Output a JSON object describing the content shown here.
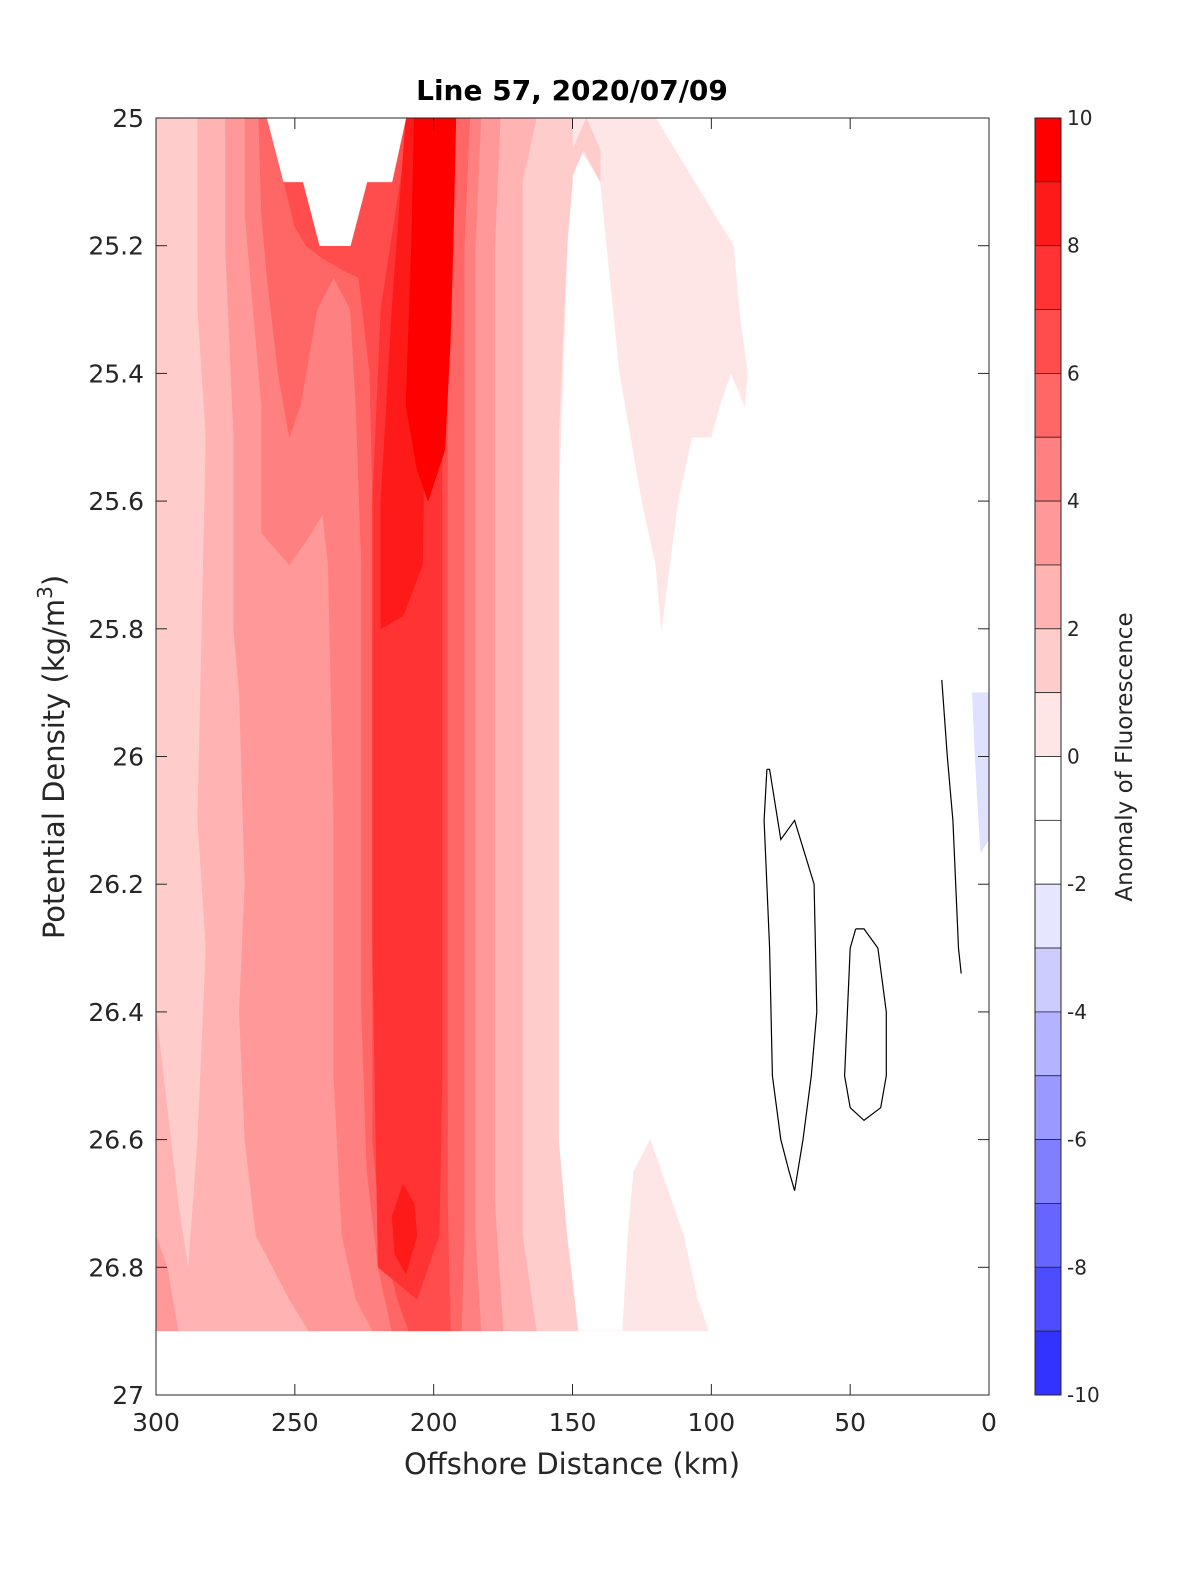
{
  "chart_data": {
    "type": "contourf",
    "title": "Line 57, 2020/07/09",
    "xlabel": "Offshore Distance (km)",
    "ylabel_main": "Potential Density (kg/m",
    "ylabel_sup": "3",
    "ylabel_end": ")",
    "xlim": [
      300,
      0
    ],
    "ylim": [
      25,
      27
    ],
    "y_reversed": true,
    "x_reversed": true,
    "x_ticks": [
      300,
      250,
      200,
      150,
      100,
      50,
      0
    ],
    "y_ticks": [
      25,
      25.2,
      25.4,
      25.6,
      25.8,
      26,
      26.2,
      26.4,
      26.6,
      26.8,
      27
    ],
    "grid": false,
    "data_extent": {
      "x": [
        300,
        0
      ],
      "y": [
        25,
        26.9
      ]
    },
    "contour_levels": [
      -10,
      -9,
      -8,
      -7,
      -6,
      -5,
      -4,
      -3,
      -2,
      -1,
      0,
      1,
      2,
      3,
      4,
      5,
      6,
      7,
      8,
      9,
      10
    ],
    "colorbar": {
      "label": "Anomaly of Fluorescence",
      "range": [
        -10,
        10
      ],
      "ticks": [
        10,
        8,
        6,
        4,
        2,
        0,
        -2,
        -4,
        -6,
        -8,
        -10
      ],
      "colors": [
        "#ff0000",
        "#ff1a1a",
        "#ff3333",
        "#ff4d4d",
        "#ff6666",
        "#ff8080",
        "#ff9999",
        "#ffb3b3",
        "#ffcccc",
        "#ffe6e6",
        "#ffffff",
        "#ffffff",
        "#e6e6ff",
        "#ccccff",
        "#b3b3ff",
        "#9999ff",
        "#8080ff",
        "#6666ff",
        "#4d4dff",
        "#3333ff",
        "#0000ff"
      ]
    },
    "fill_regions": [
      {
        "name": "level-1-2",
        "color": "#ffe6e6",
        "points": [
          [
            300,
            25
          ],
          [
            300,
            26.9
          ],
          [
            101,
            26.9
          ],
          [
            105,
            26.85
          ],
          [
            110,
            26.75
          ],
          [
            118,
            26.65
          ],
          [
            122,
            26.6
          ],
          [
            128,
            26.65
          ],
          [
            130,
            26.75
          ],
          [
            132,
            26.9
          ],
          [
            152,
            26.9
          ],
          [
            155,
            26.8
          ],
          [
            155,
            25.6
          ],
          [
            151,
            25.1
          ],
          [
            147,
            25.05
          ],
          [
            140,
            25.1
          ],
          [
            133,
            25.4
          ],
          [
            125,
            25.6
          ],
          [
            120,
            25.7
          ],
          [
            118,
            25.8
          ],
          [
            112,
            25.6
          ],
          [
            107,
            25.5
          ],
          [
            100,
            25.5
          ],
          [
            97,
            25.45
          ],
          [
            93,
            25.4
          ],
          [
            88,
            25.45
          ],
          [
            87,
            25.4
          ],
          [
            90,
            25.3
          ],
          [
            92,
            25.2
          ],
          [
            120,
            25.0
          ]
        ]
      },
      {
        "name": "level-2-3",
        "color": "#ffcccc",
        "points": [
          [
            300,
            25
          ],
          [
            300,
            26.9
          ],
          [
            148,
            26.9
          ],
          [
            152,
            26.75
          ],
          [
            155,
            26.6
          ],
          [
            155,
            25.5
          ],
          [
            152,
            25.2
          ],
          [
            150,
            25.1
          ],
          [
            150,
            25.0
          ]
        ]
      },
      {
        "name": "level-2-3-right",
        "color": "#ffcccc",
        "points": [
          [
            150,
            25.0
          ],
          [
            145,
            25.0
          ],
          [
            150,
            25.05
          ],
          [
            151,
            25.1
          ],
          [
            146,
            25.05
          ],
          [
            140,
            25.1
          ],
          [
            140,
            25.05
          ],
          [
            145,
            25.0
          ]
        ]
      },
      {
        "name": "level-3-4",
        "color": "#ffb3b3",
        "points": [
          [
            285,
            25
          ],
          [
            285,
            25.3
          ],
          [
            282,
            25.5
          ],
          [
            285,
            26.1
          ],
          [
            282,
            26.3
          ],
          [
            285,
            26.6
          ],
          [
            290,
            26.9
          ],
          [
            163,
            26.9
          ],
          [
            168,
            26.75
          ],
          [
            168,
            25.1
          ],
          [
            163,
            25.0
          ]
        ]
      },
      {
        "name": "level-3-4-left",
        "color": "#ffb3b3",
        "points": [
          [
            300,
            26.4
          ],
          [
            300,
            26.9
          ],
          [
            285,
            26.9
          ],
          [
            292,
            26.7
          ],
          [
            296,
            26.55
          ]
        ]
      },
      {
        "name": "level-4-5",
        "color": "#ff9999",
        "points": [
          [
            275,
            25
          ],
          [
            275,
            25.2
          ],
          [
            272,
            25.5
          ],
          [
            272,
            25.8
          ],
          [
            270,
            25.9
          ],
          [
            268,
            26.2
          ],
          [
            270,
            26.4
          ],
          [
            268,
            26.6
          ],
          [
            264,
            26.75
          ],
          [
            252,
            26.85
          ],
          [
            245,
            26.9
          ],
          [
            175,
            26.9
          ],
          [
            178,
            26.7
          ],
          [
            178,
            25.2
          ],
          [
            176,
            25.0
          ]
        ]
      },
      {
        "name": "level-4-5-left",
        "color": "#ff9999",
        "points": [
          [
            300,
            26.75
          ],
          [
            300,
            26.9
          ],
          [
            292,
            26.9
          ],
          [
            296,
            26.8
          ]
        ]
      },
      {
        "name": "level-5-6",
        "color": "#ff8080",
        "points": [
          [
            268,
            25
          ],
          [
            268,
            25.15
          ],
          [
            265,
            25.3
          ],
          [
            262,
            25.45
          ],
          [
            262,
            25.65
          ],
          [
            252,
            25.7
          ],
          [
            244,
            25.65
          ],
          [
            240,
            25.62
          ],
          [
            238,
            25.7
          ],
          [
            236,
            26.1
          ],
          [
            236,
            26.5
          ],
          [
            233,
            26.75
          ],
          [
            228,
            26.85
          ],
          [
            222,
            26.9
          ],
          [
            183,
            26.9
          ],
          [
            185,
            26.75
          ],
          [
            185,
            25.2
          ],
          [
            183,
            25.0
          ]
        ]
      },
      {
        "name": "level-5-6-center",
        "color": "#ff9999",
        "points": [
          [
            247,
            25.88
          ],
          [
            241,
            25.9
          ],
          [
            238,
            26.2
          ],
          [
            238,
            26.6
          ],
          [
            240,
            26.8
          ],
          [
            247,
            26.85
          ],
          [
            252,
            26.8
          ],
          [
            254,
            26.5
          ],
          [
            254,
            26.2
          ],
          [
            252,
            25.95
          ]
        ]
      },
      {
        "name": "level-6-7",
        "color": "#ff6666",
        "points": [
          [
            263,
            25
          ],
          [
            262,
            25.15
          ],
          [
            260,
            25.25
          ],
          [
            256,
            25.4
          ],
          [
            252,
            25.5
          ],
          [
            248,
            25.45
          ],
          [
            242,
            25.3
          ],
          [
            236,
            25.25
          ],
          [
            230,
            25.3
          ],
          [
            228,
            25.45
          ],
          [
            226,
            25.7
          ],
          [
            226,
            26.4
          ],
          [
            224,
            26.65
          ],
          [
            220,
            26.8
          ],
          [
            215,
            26.9
          ],
          [
            190,
            26.9
          ],
          [
            189,
            26.75
          ],
          [
            189,
            25.2
          ],
          [
            187,
            25.0
          ]
        ]
      },
      {
        "name": "level-7-8",
        "color": "#ff4d4d",
        "points": [
          [
            256,
            25
          ],
          [
            254,
            25.1
          ],
          [
            250,
            25.17
          ],
          [
            246,
            25.2
          ],
          [
            240,
            25.22
          ],
          [
            232,
            25.24
          ],
          [
            227,
            25.25
          ],
          [
            223,
            25.4
          ],
          [
            222,
            25.6
          ],
          [
            222,
            26.3
          ],
          [
            222,
            26.6
          ],
          [
            219,
            26.75
          ],
          [
            213,
            26.85
          ],
          [
            209,
            26.9
          ],
          [
            194,
            26.9
          ],
          [
            195,
            26.7
          ],
          [
            195,
            25.2
          ],
          [
            193,
            25.0
          ]
        ]
      },
      {
        "name": "level-8-9",
        "color": "#ff3333",
        "points": [
          [
            210,
            25
          ],
          [
            210,
            25.05
          ],
          [
            212,
            25.1
          ],
          [
            219,
            25.3
          ],
          [
            222,
            25.6
          ],
          [
            222,
            26.3
          ],
          [
            220,
            26.8
          ],
          [
            206,
            26.85
          ],
          [
            198,
            26.75
          ],
          [
            197,
            26.5
          ],
          [
            197,
            25.2
          ],
          [
            196,
            25.0
          ]
        ]
      },
      {
        "name": "level-9-10-top",
        "color": "#ff1a1a",
        "points": [
          [
            210,
            25
          ],
          [
            215,
            25.3
          ],
          [
            219,
            25.6
          ],
          [
            219,
            25.8
          ],
          [
            211,
            25.78
          ],
          [
            204,
            25.7
          ],
          [
            203,
            25.4
          ],
          [
            201,
            25.2
          ],
          [
            200,
            25.0
          ]
        ]
      },
      {
        "name": "level-9-10-bottom",
        "color": "#ff1a1a",
        "points": [
          [
            211,
            26.67
          ],
          [
            215,
            26.72
          ],
          [
            214,
            26.78
          ],
          [
            210,
            26.81
          ],
          [
            206,
            26.75
          ],
          [
            207,
            26.7
          ]
        ]
      },
      {
        "name": "level-10-core",
        "color": "#ff0000",
        "points": [
          [
            207,
            25
          ],
          [
            208,
            25.2
          ],
          [
            210,
            25.45
          ],
          [
            206,
            25.55
          ],
          [
            202,
            25.6
          ],
          [
            196,
            25.52
          ],
          [
            194,
            25.35
          ],
          [
            193,
            25.2
          ],
          [
            192,
            25.0
          ]
        ]
      },
      {
        "name": "level-neg-1",
        "color": "#e0e0ff",
        "points": [
          [
            6,
            25.9
          ],
          [
            0,
            25.9
          ],
          [
            0,
            26.13
          ],
          [
            3,
            26.15
          ],
          [
            4,
            26.08
          ],
          [
            5,
            26.0
          ]
        ]
      }
    ],
    "white_cutouts": [
      {
        "name": "cutout-top",
        "points": [
          [
            260,
            25
          ],
          [
            254,
            25.1
          ],
          [
            247,
            25.1
          ],
          [
            241,
            25.2
          ],
          [
            230,
            25.2
          ],
          [
            224,
            25.1
          ],
          [
            215,
            25.1
          ],
          [
            210,
            25.0
          ]
        ]
      }
    ],
    "contour_lines": [
      {
        "name": "contour-a",
        "points": [
          [
            80,
            26.02
          ],
          [
            81,
            26.1
          ],
          [
            79,
            26.3
          ],
          [
            78,
            26.5
          ],
          [
            75,
            26.6
          ],
          [
            72,
            26.65
          ],
          [
            70,
            26.68
          ],
          [
            67,
            26.6
          ],
          [
            64,
            26.5
          ],
          [
            62,
            26.4
          ],
          [
            63,
            26.2
          ],
          [
            70,
            26.1
          ],
          [
            75,
            26.13
          ],
          [
            79,
            26.02
          ],
          [
            80,
            26.02
          ]
        ]
      },
      {
        "name": "contour-b",
        "points": [
          [
            48,
            26.27
          ],
          [
            50,
            26.3
          ],
          [
            52,
            26.5
          ],
          [
            50,
            26.55
          ],
          [
            45,
            26.57
          ],
          [
            39,
            26.55
          ],
          [
            37,
            26.5
          ],
          [
            37,
            26.4
          ],
          [
            40,
            26.3
          ],
          [
            45,
            26.27
          ],
          [
            48,
            26.27
          ]
        ]
      },
      {
        "name": "contour-c",
        "points": [
          [
            17,
            25.88
          ],
          [
            15,
            26.0
          ],
          [
            13,
            26.1
          ],
          [
            12,
            26.2
          ],
          [
            11,
            26.3
          ],
          [
            10,
            26.34
          ]
        ]
      }
    ]
  }
}
